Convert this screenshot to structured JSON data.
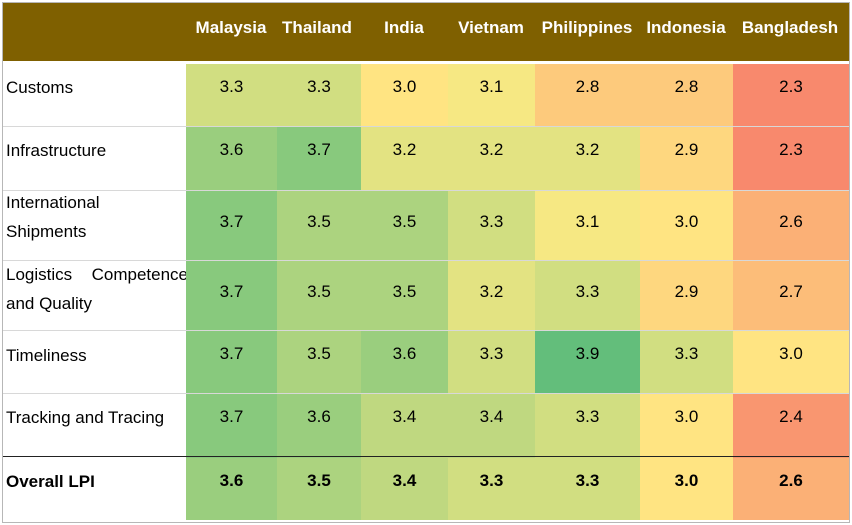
{
  "chart_data": {
    "type": "heatmap",
    "columns": [
      "Malaysia",
      "Thailand",
      "India",
      "Vietnam",
      "Philippines",
      "Indonesia",
      "Bangladesh"
    ],
    "rows": [
      {
        "label": "Customs",
        "values": [
          "3.3",
          "3.3",
          "3.0",
          "3.1",
          "2.8",
          "2.8",
          "2.3"
        ]
      },
      {
        "label": "Infrastructure",
        "values": [
          "3.6",
          "3.7",
          "3.2",
          "3.2",
          "3.2",
          "2.9",
          "2.3"
        ]
      },
      {
        "label": "International Shipments",
        "values": [
          "3.7",
          "3.5",
          "3.5",
          "3.3",
          "3.1",
          "3.0",
          "2.6"
        ]
      },
      {
        "label": "Logistics Competence and Quality",
        "values": [
          "3.7",
          "3.5",
          "3.5",
          "3.2",
          "3.3",
          "2.9",
          "2.7"
        ]
      },
      {
        "label": "Timeliness",
        "values": [
          "3.7",
          "3.5",
          "3.6",
          "3.3",
          "3.9",
          "3.3",
          "3.0"
        ]
      },
      {
        "label": "Tracking and Tracing",
        "values": [
          "3.7",
          "3.6",
          "3.4",
          "3.4",
          "3.3",
          "3.0",
          "2.4"
        ]
      },
      {
        "label": "Overall LPI",
        "values": [
          "3.6",
          "3.5",
          "3.4",
          "3.3",
          "3.3",
          "3.0",
          "2.6"
        ],
        "bold": true
      }
    ],
    "color_scale": {
      "low": "#f8896d",
      "mid": "#ffeb84",
      "high": "#63be7b"
    },
    "header_color": "#7f6000"
  }
}
